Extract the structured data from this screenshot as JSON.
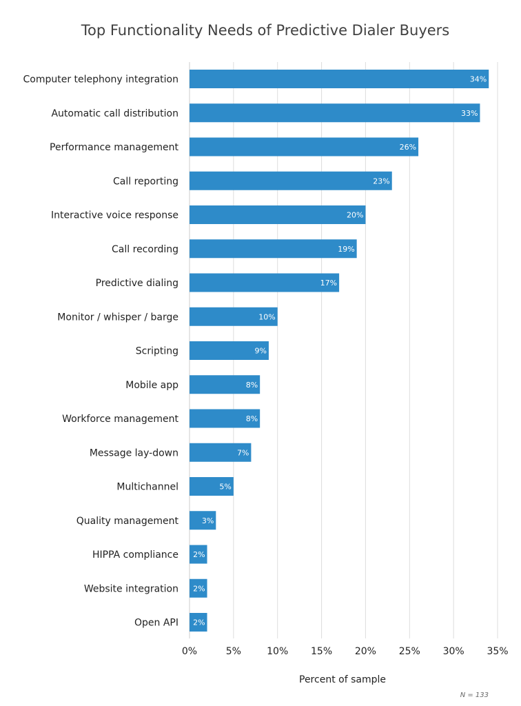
{
  "chart_data": {
    "type": "bar",
    "orientation": "horizontal",
    "title": "Top Functionality Needs of Predictive Dialer Buyers",
    "xlabel": "Percent of sample",
    "ylabel": "",
    "xlim": [
      0,
      35
    ],
    "grid": true,
    "bar_color": "#2e8bc9",
    "categories": [
      "Computer telephony integration",
      "Automatic call distribution",
      "Performance management",
      "Call reporting",
      "Interactive voice response",
      "Call recording",
      "Predictive dialing",
      "Monitor / whisper / barge",
      "Scripting",
      "Mobile app",
      "Workforce management",
      "Message lay-down",
      "Multichannel",
      "Quality management",
      "HIPPA compliance",
      "Website integration",
      "Open API"
    ],
    "values": [
      34,
      33,
      26,
      23,
      20,
      19,
      17,
      10,
      9,
      8,
      8,
      7,
      5,
      3,
      2,
      2,
      2
    ],
    "data_labels": [
      "34%",
      "33%",
      "26%",
      "23%",
      "20%",
      "19%",
      "17%",
      "10%",
      "9%",
      "8%",
      "8%",
      "7%",
      "5%",
      "3%",
      "2%",
      "2%",
      "2%"
    ],
    "x_ticks": [
      0,
      5,
      10,
      15,
      20,
      25,
      30,
      35
    ],
    "x_tick_labels": [
      "0%",
      "5%",
      "10%",
      "15%",
      "20%",
      "25%",
      "30%",
      "35%"
    ],
    "note": "N = 133"
  }
}
